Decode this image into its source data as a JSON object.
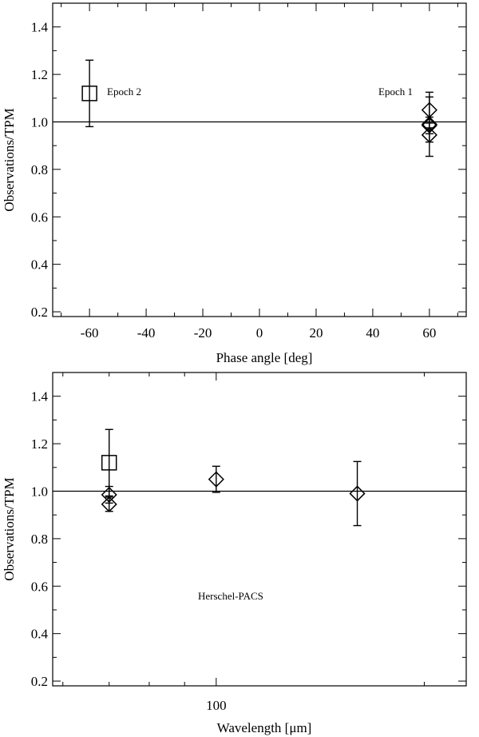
{
  "chart_data": [
    {
      "type": "scatter",
      "xlabel": "Phase angle [deg]",
      "ylabel": "Observations/TPM",
      "xlim": [
        -73,
        73
      ],
      "ylim": [
        0.18,
        1.5
      ],
      "xticks": [
        -60,
        -40,
        -20,
        0,
        20,
        40,
        60
      ],
      "yticks": [
        0.2,
        0.4,
        0.6,
        0.8,
        1.0,
        1.2,
        1.4
      ],
      "reference_line": 1.0,
      "annotations": [
        "Epoch 2",
        "Epoch 1"
      ],
      "points": [
        {
          "x": -60,
          "y": 1.12,
          "err": 0.14,
          "marker": "square"
        },
        {
          "x": 60,
          "y": 1.05,
          "err": 0.055,
          "marker": "diamond"
        },
        {
          "x": 60,
          "y": 0.99,
          "err": 0.135,
          "marker": "diamond"
        },
        {
          "x": 60,
          "y": 0.985,
          "err": 0.035,
          "marker": "diamond"
        },
        {
          "x": 60,
          "y": 0.945,
          "err": 0.03,
          "marker": "diamond"
        }
      ]
    },
    {
      "type": "scatter",
      "xlabel": "Wavelength [μm]",
      "ylabel": "Observations/TPM",
      "xscale": "log",
      "xlim": [
        58,
        230
      ],
      "ylim": [
        0.18,
        1.5
      ],
      "xtick_labels": [
        {
          "value": 100,
          "label": "100"
        }
      ],
      "xtick_minor": [
        60,
        70,
        80,
        90,
        200
      ],
      "yticks": [
        0.2,
        0.4,
        0.6,
        0.8,
        1.0,
        1.2,
        1.4
      ],
      "reference_line": 1.0,
      "annotations": [
        "Herschel-PACS"
      ],
      "points": [
        {
          "x": 70,
          "y": 1.12,
          "err": 0.14,
          "marker": "square"
        },
        {
          "x": 70,
          "y": 0.985,
          "err": 0.035,
          "marker": "diamond"
        },
        {
          "x": 70,
          "y": 0.945,
          "err": 0.03,
          "marker": "diamond"
        },
        {
          "x": 100,
          "y": 1.05,
          "err": 0.055,
          "marker": "diamond"
        },
        {
          "x": 160,
          "y": 0.99,
          "err": 0.135,
          "marker": "diamond"
        }
      ]
    }
  ]
}
